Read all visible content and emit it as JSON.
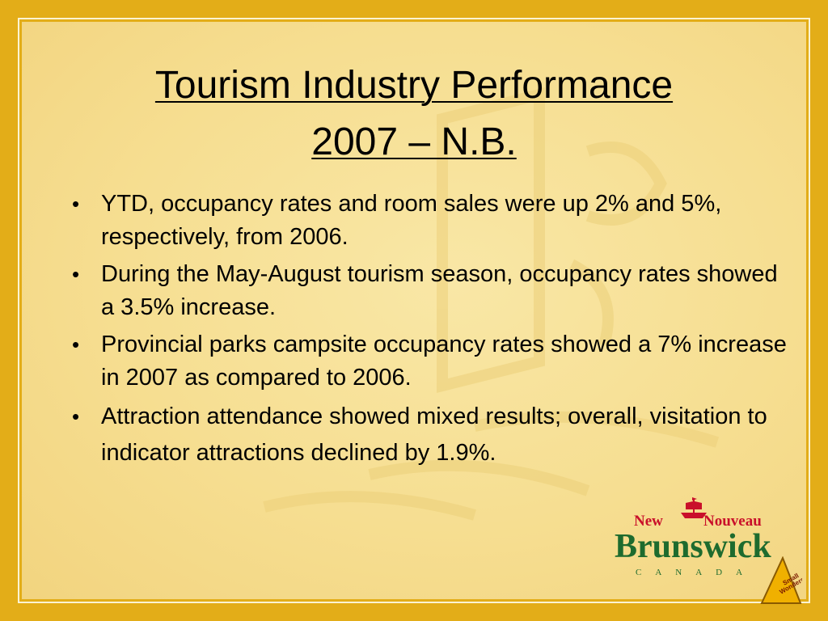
{
  "slide": {
    "title_line1": "Tourism Industry Performance",
    "title_line2": "2007 – N.B.",
    "bullets": [
      "YTD, occupancy rates and room sales were up 2% and 5%, respectively, from 2006.",
      "During the May-August tourism season, occupancy rates showed a 3.5% increase.",
      "Provincial parks campsite occupancy rates showed a 7% increase in 2007 as compared to 2006.",
      "Attraction attendance showed mixed results; overall, visitation to  indicator attractions declined by 1.9%."
    ],
    "bullet_symbol": "•"
  },
  "logo": {
    "new": "New",
    "nouveau": "Nouveau",
    "brunswick": "Brunswick",
    "canada": "CANADA",
    "badge_text": "Be Small Wonders"
  },
  "colors": {
    "frame": "#e3ad18",
    "panel": "#f6de91",
    "logo_red": "#c9102a",
    "logo_green": "#1e6b2e"
  }
}
